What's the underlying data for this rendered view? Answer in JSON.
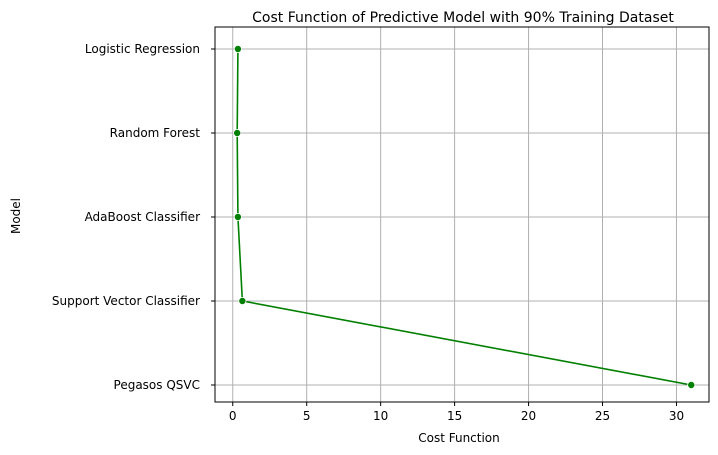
{
  "chart_data": {
    "type": "line",
    "title": "Cost Function of Predictive Model with 90% Training Dataset",
    "xlabel": "Cost Function",
    "ylabel": "Model",
    "categories": [
      "Logistic Regression",
      "Random Forest",
      "AdaBoost Classifier",
      "Support Vector Classifier",
      "Pegasos QSVC"
    ],
    "values": [
      0.35,
      0.3,
      0.35,
      0.65,
      31.0
    ],
    "xlim": [
      -1.2,
      32.2
    ],
    "xticks": [
      0,
      5,
      10,
      15,
      20,
      25,
      30
    ],
    "grid": true,
    "color": "#008000"
  }
}
